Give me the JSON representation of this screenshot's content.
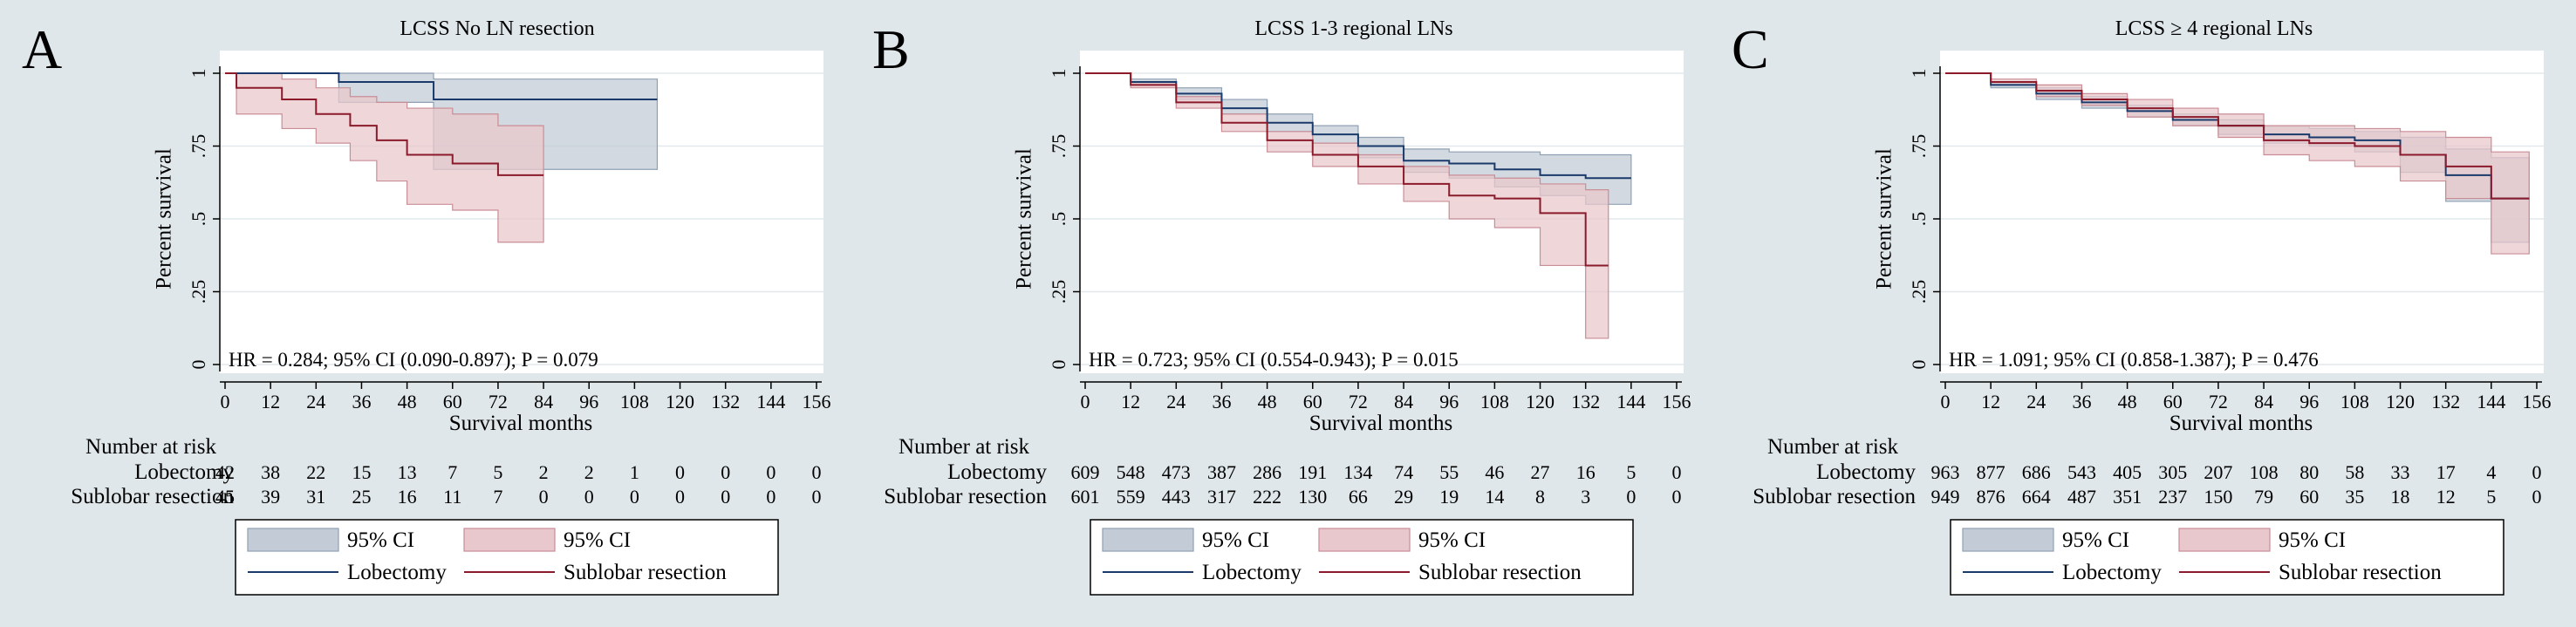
{
  "colors": {
    "background": "#dfe7ea",
    "lobectomy_line": "#1a3a6b",
    "lobectomy_ci": "#c3ccd6",
    "sublobar_line": "#8b1a2b",
    "sublobar_ci": "#e8c8cc"
  },
  "chart_data": [
    {
      "type": "line",
      "panel_letter": "A",
      "title": "LCSS No LN resection",
      "xlabel": "Survival months",
      "ylabel": "Percent survival",
      "xlim": [
        0,
        156
      ],
      "ylim": [
        0,
        1
      ],
      "x_ticks": [
        "0",
        "12",
        "24",
        "36",
        "48",
        "60",
        "72",
        "84",
        "96",
        "108",
        "120",
        "132",
        "144",
        "156"
      ],
      "y_ticks": [
        "0",
        ".25",
        ".5",
        ".75",
        "1"
      ],
      "annotation": "HR = 0.284; 95% CI (0.090-0.897); P = 0.079",
      "series": [
        {
          "name": "Lobectomy",
          "x": [
            0,
            30,
            55,
            114
          ],
          "y": [
            1,
            0.97,
            0.91,
            0.91
          ],
          "ci_x": [
            0,
            30,
            55,
            114
          ],
          "ci_low": [
            1,
            0.9,
            0.67,
            0.67
          ],
          "ci_high": [
            1,
            1,
            0.98,
            0.98
          ]
        },
        {
          "name": "Sublobar resection",
          "x": [
            0,
            3,
            15,
            24,
            33,
            40,
            48,
            60,
            72,
            84
          ],
          "y": [
            1,
            0.95,
            0.91,
            0.86,
            0.82,
            0.77,
            0.72,
            0.69,
            0.65,
            0.65
          ],
          "ci_x": [
            0,
            3,
            15,
            24,
            33,
            40,
            48,
            60,
            72,
            84
          ],
          "ci_low": [
            1,
            0.86,
            0.81,
            0.76,
            0.7,
            0.63,
            0.55,
            0.53,
            0.42,
            0.42
          ],
          "ci_high": [
            1,
            1,
            0.98,
            0.95,
            0.92,
            0.9,
            0.88,
            0.86,
            0.82,
            0.82
          ]
        }
      ],
      "risk_table": {
        "header": "Number at risk",
        "rows": [
          {
            "label": "Lobectomy",
            "values": [
              "42",
              "38",
              "22",
              "15",
              "13",
              "7",
              "5",
              "2",
              "2",
              "1",
              "0",
              "0",
              "0",
              "0"
            ]
          },
          {
            "label": "Sublobar resection",
            "values": [
              "45",
              "39",
              "31",
              "25",
              "16",
              "11",
              "7",
              "0",
              "0",
              "0",
              "0",
              "0",
              "0",
              "0"
            ]
          }
        ]
      },
      "legend": {
        "ci_label_1": "95% CI",
        "ci_label_2": "95% CI",
        "line_label_1": "Lobectomy",
        "line_label_2": "Sublobar resection"
      }
    },
    {
      "type": "line",
      "panel_letter": "B",
      "title": "LCSS 1-3 regional LNs",
      "xlabel": "Survival months",
      "ylabel": "Percent survival",
      "xlim": [
        0,
        156
      ],
      "ylim": [
        0,
        1
      ],
      "x_ticks": [
        "0",
        "12",
        "24",
        "36",
        "48",
        "60",
        "72",
        "84",
        "96",
        "108",
        "120",
        "132",
        "144",
        "156"
      ],
      "y_ticks": [
        "0",
        ".25",
        ".5",
        ".75",
        "1"
      ],
      "annotation": "HR = 0.723; 95% CI (0.554-0.943); P = 0.015",
      "series": [
        {
          "name": "Lobectomy",
          "x": [
            0,
            12,
            24,
            36,
            48,
            60,
            72,
            84,
            96,
            108,
            120,
            132,
            144
          ],
          "y": [
            1,
            0.97,
            0.93,
            0.88,
            0.83,
            0.79,
            0.75,
            0.7,
            0.69,
            0.67,
            0.65,
            0.64,
            0.64
          ],
          "ci_x": [
            0,
            12,
            24,
            36,
            48,
            60,
            72,
            84,
            96,
            108,
            120,
            132,
            144
          ],
          "ci_low": [
            1,
            0.96,
            0.91,
            0.86,
            0.8,
            0.76,
            0.71,
            0.66,
            0.64,
            0.61,
            0.58,
            0.55,
            0.55
          ],
          "ci_high": [
            1,
            0.98,
            0.95,
            0.91,
            0.86,
            0.82,
            0.78,
            0.74,
            0.73,
            0.73,
            0.72,
            0.72,
            0.72
          ]
        },
        {
          "name": "Sublobar resection",
          "x": [
            0,
            12,
            24,
            36,
            48,
            60,
            72,
            84,
            96,
            108,
            120,
            132,
            138
          ],
          "y": [
            1,
            0.96,
            0.9,
            0.83,
            0.77,
            0.72,
            0.68,
            0.62,
            0.58,
            0.57,
            0.52,
            0.34,
            0.34
          ],
          "ci_x": [
            0,
            12,
            24,
            36,
            48,
            60,
            72,
            84,
            96,
            108,
            120,
            132,
            138
          ],
          "ci_low": [
            1,
            0.95,
            0.88,
            0.8,
            0.73,
            0.68,
            0.62,
            0.56,
            0.5,
            0.47,
            0.34,
            0.09,
            0.09
          ],
          "ci_high": [
            1,
            0.97,
            0.92,
            0.86,
            0.8,
            0.76,
            0.72,
            0.68,
            0.65,
            0.64,
            0.62,
            0.6,
            0.6
          ]
        }
      ],
      "risk_table": {
        "header": "Number at risk",
        "rows": [
          {
            "label": "Lobectomy",
            "values": [
              "609",
              "548",
              "473",
              "387",
              "286",
              "191",
              "134",
              "74",
              "55",
              "46",
              "27",
              "16",
              "5",
              "0"
            ]
          },
          {
            "label": "Sublobar resection",
            "values": [
              "601",
              "559",
              "443",
              "317",
              "222",
              "130",
              "66",
              "29",
              "19",
              "14",
              "8",
              "3",
              "0",
              "0"
            ]
          }
        ]
      },
      "legend": {
        "ci_label_1": "95% CI",
        "ci_label_2": "95% CI",
        "line_label_1": "Lobectomy",
        "line_label_2": "Sublobar resection"
      }
    },
    {
      "type": "line",
      "panel_letter": "C",
      "title": "LCSS ≥ 4 regional LNs",
      "xlabel": "Survival months",
      "ylabel": "Percent survival",
      "xlim": [
        0,
        156
      ],
      "ylim": [
        0,
        1
      ],
      "x_ticks": [
        "0",
        "12",
        "24",
        "36",
        "48",
        "60",
        "72",
        "84",
        "96",
        "108",
        "120",
        "132",
        "144",
        "156"
      ],
      "y_ticks": [
        "0",
        ".25",
        ".5",
        ".75",
        "1"
      ],
      "annotation": "HR = 1.091; 95% CI (0.858-1.387); P = 0.476",
      "series": [
        {
          "name": "Lobectomy",
          "x": [
            0,
            12,
            24,
            36,
            48,
            60,
            72,
            84,
            96,
            108,
            120,
            132,
            144,
            154
          ],
          "y": [
            1,
            0.96,
            0.93,
            0.9,
            0.87,
            0.84,
            0.82,
            0.79,
            0.78,
            0.77,
            0.72,
            0.65,
            0.57,
            0.57
          ],
          "ci_x": [
            0,
            12,
            24,
            36,
            48,
            60,
            72,
            84,
            96,
            108,
            120,
            132,
            144,
            154
          ],
          "ci_low": [
            1,
            0.95,
            0.91,
            0.88,
            0.85,
            0.82,
            0.79,
            0.76,
            0.75,
            0.73,
            0.66,
            0.56,
            0.42,
            0.42
          ],
          "ci_high": [
            1,
            0.97,
            0.95,
            0.92,
            0.89,
            0.86,
            0.84,
            0.82,
            0.81,
            0.8,
            0.78,
            0.74,
            0.71,
            0.71
          ]
        },
        {
          "name": "Sublobar resection",
          "x": [
            0,
            12,
            24,
            36,
            48,
            60,
            72,
            84,
            96,
            108,
            120,
            132,
            144,
            154
          ],
          "y": [
            1,
            0.97,
            0.94,
            0.91,
            0.88,
            0.85,
            0.82,
            0.77,
            0.76,
            0.75,
            0.72,
            0.68,
            0.57,
            0.57
          ],
          "ci_x": [
            0,
            12,
            24,
            36,
            48,
            60,
            72,
            84,
            96,
            108,
            120,
            132,
            144,
            154
          ],
          "ci_low": [
            1,
            0.96,
            0.92,
            0.89,
            0.85,
            0.82,
            0.78,
            0.72,
            0.7,
            0.68,
            0.63,
            0.57,
            0.38,
            0.38
          ],
          "ci_high": [
            1,
            0.98,
            0.96,
            0.93,
            0.91,
            0.88,
            0.86,
            0.82,
            0.82,
            0.81,
            0.8,
            0.78,
            0.73,
            0.73
          ]
        }
      ],
      "risk_table": {
        "header": "Number at risk",
        "rows": [
          {
            "label": "Lobectomy",
            "values": [
              "963",
              "877",
              "686",
              "543",
              "405",
              "305",
              "207",
              "108",
              "80",
              "58",
              "33",
              "17",
              "4",
              "0"
            ]
          },
          {
            "label": "Sublobar resection",
            "values": [
              "949",
              "876",
              "664",
              "487",
              "351",
              "237",
              "150",
              "79",
              "60",
              "35",
              "18",
              "12",
              "5",
              "0"
            ]
          }
        ]
      },
      "legend": {
        "ci_label_1": "95% CI",
        "ci_label_2": "95% CI",
        "line_label_1": "Lobectomy",
        "line_label_2": "Sublobar resection"
      }
    }
  ]
}
